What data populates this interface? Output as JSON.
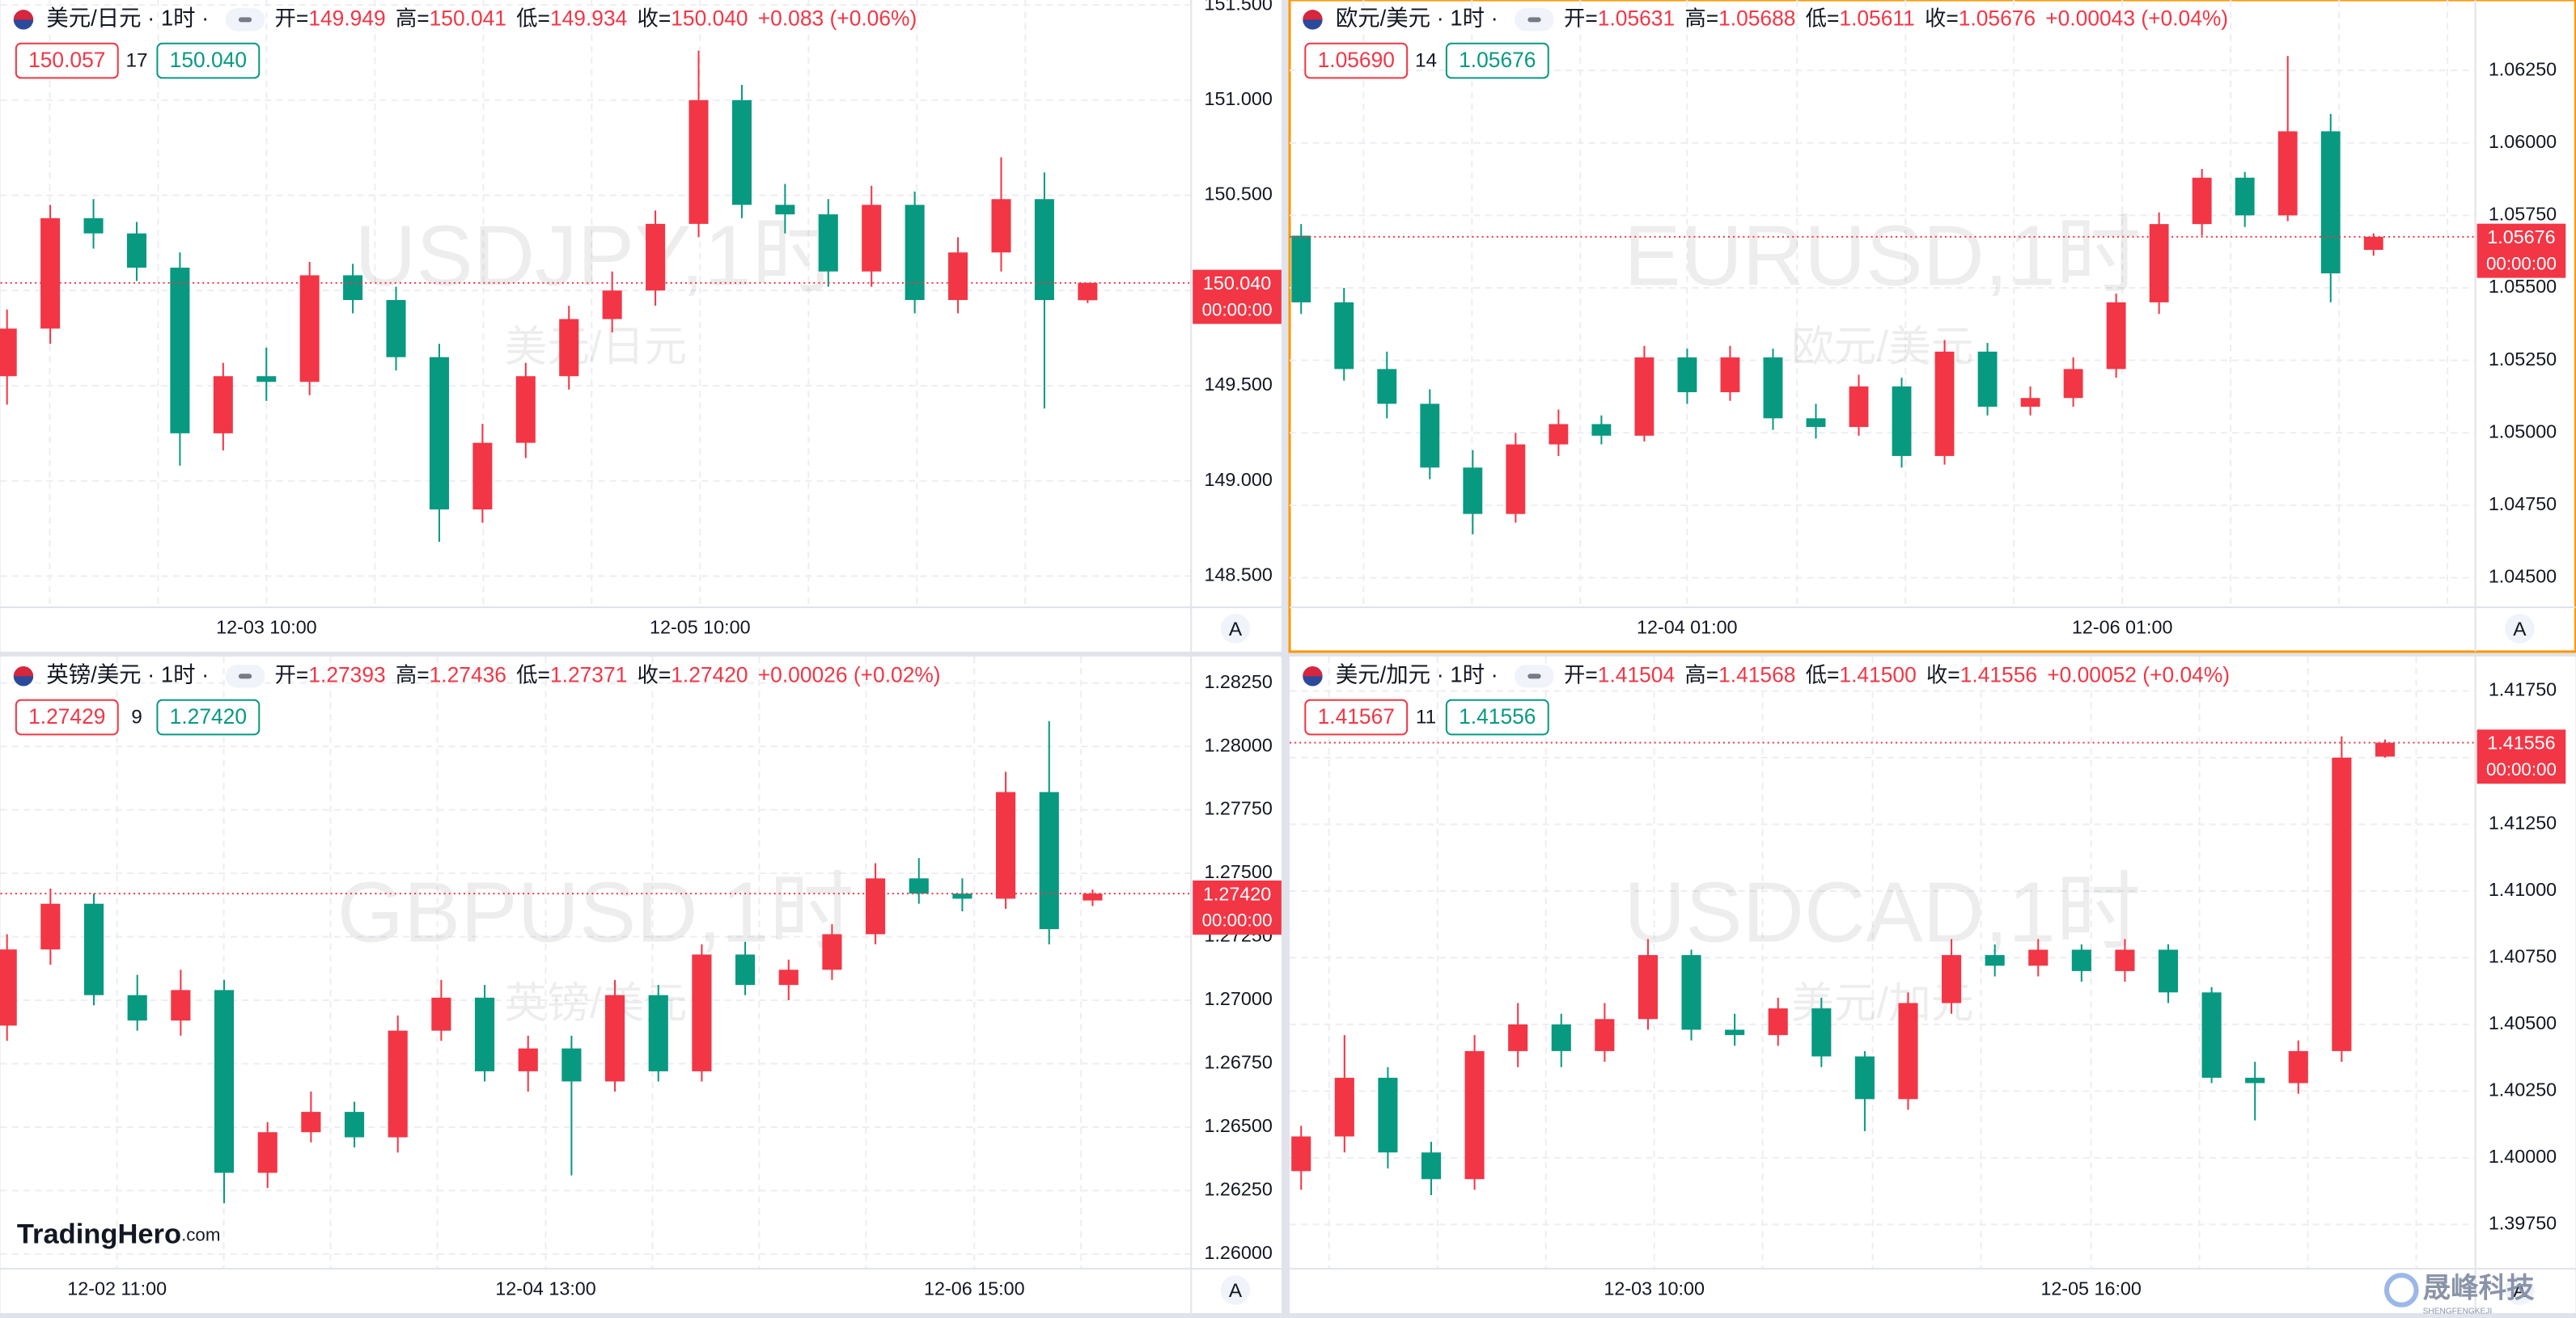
{
  "chart_data": [
    {
      "type": "candlestick",
      "header": {
        "symbol": "美元/日元 · 1时 ·",
        "fields": [
          {
            "label": "开=",
            "value": "149.949"
          },
          {
            "label": "高=",
            "value": "150.041"
          },
          {
            "label": "低=",
            "value": "149.934"
          },
          {
            "label": "收=",
            "value": "150.040"
          }
        ],
        "change": "+0.083 (+0.06%)"
      },
      "bid": "150.057",
      "spread": "17",
      "ask": "150.040",
      "watermark": "USDJPY,1时",
      "watermark_sub": "美元/日元",
      "x_labels": [
        "12-03 10:00",
        "12-05 10:00"
      ],
      "last_label": "150.040",
      "countdown": "00:00:00",
      "auto": "A",
      "up_color": "#f23645",
      "down_color": "#089981",
      "active": false,
      "ylim": [
        148.336,
        151.526
      ],
      "yticks": [
        {
          "value": 148.5,
          "label": "148.500"
        },
        {
          "value": 149,
          "label": "149.000"
        },
        {
          "value": 149.5,
          "label": "149.500"
        },
        {
          "value": 150,
          "label": "150.000"
        },
        {
          "value": 150.5,
          "label": "150.500"
        },
        {
          "value": 151,
          "label": "151.000"
        },
        {
          "value": 151.5,
          "label": "151.500"
        }
      ],
      "open": [
        149.55,
        149.8,
        150.38,
        150.3,
        150.12,
        149.25,
        149.55,
        149.52,
        150.08,
        149.95,
        149.65,
        148.85,
        149.2,
        149.55,
        149.85,
        150.0,
        150.35,
        151.0,
        150.45,
        150.4,
        150.1,
        150.45,
        149.95,
        150.2,
        150.48,
        149.949
      ],
      "high": [
        149.9,
        150.45,
        150.48,
        150.36,
        150.2,
        149.62,
        149.7,
        150.15,
        150.14,
        150.02,
        149.72,
        149.3,
        149.62,
        149.92,
        150.1,
        150.42,
        151.26,
        151.08,
        150.56,
        150.48,
        150.55,
        150.52,
        150.28,
        150.7,
        150.62,
        150.041
      ],
      "low": [
        149.4,
        149.72,
        150.22,
        150.05,
        149.08,
        149.16,
        149.42,
        149.45,
        149.88,
        149.58,
        148.68,
        148.78,
        149.12,
        149.48,
        149.78,
        149.92,
        150.28,
        150.38,
        150.3,
        150.02,
        150.02,
        149.88,
        149.88,
        150.1,
        149.38,
        149.934
      ],
      "close": [
        149.8,
        150.38,
        150.3,
        150.12,
        149.25,
        149.55,
        149.52,
        150.08,
        149.95,
        149.65,
        148.85,
        149.2,
        149.55,
        149.85,
        150.0,
        150.35,
        151.0,
        150.45,
        150.4,
        150.1,
        150.45,
        149.95,
        150.2,
        150.48,
        149.95,
        150.04
      ]
    },
    {
      "type": "candlestick",
      "header": {
        "symbol": "欧元/美元 · 1时 ·",
        "fields": [
          {
            "label": "开=",
            "value": "1.05631"
          },
          {
            "label": "高=",
            "value": "1.05688"
          },
          {
            "label": "低=",
            "value": "1.05611"
          },
          {
            "label": "收=",
            "value": "1.05676"
          }
        ],
        "change": "+0.00043 (+0.04%)"
      },
      "bid": "1.05690",
      "spread": "14",
      "ask": "1.05676",
      "watermark": "EURUSD,1时",
      "watermark_sub": "欧元/美元",
      "x_labels": [
        "12-04 01:00",
        "12-06 01:00"
      ],
      "last_label": "1.05676",
      "countdown": "00:00:00",
      "auto": "A",
      "up_color": "#f23645",
      "down_color": "#089981",
      "active": true,
      "ylim": [
        1.04398,
        1.06493
      ],
      "yticks": [
        {
          "value": 1.045,
          "label": "1.04500"
        },
        {
          "value": 1.0475,
          "label": "1.04750"
        },
        {
          "value": 1.05,
          "label": "1.05000"
        },
        {
          "value": 1.0525,
          "label": "1.05250"
        },
        {
          "value": 1.055,
          "label": "1.05500"
        },
        {
          "value": 1.0575,
          "label": "1.05750"
        },
        {
          "value": 1.06,
          "label": "1.06000"
        },
        {
          "value": 1.0625,
          "label": "1.06250"
        }
      ],
      "open": [
        1.0568,
        1.0545,
        1.0522,
        1.051,
        1.0488,
        1.0472,
        1.0496,
        1.0503,
        1.0499,
        1.0526,
        1.0514,
        1.0526,
        1.0505,
        1.0502,
        1.0516,
        1.0492,
        1.0528,
        1.0509,
        1.0512,
        1.0522,
        1.0545,
        1.0572,
        1.0588,
        1.0575,
        1.0604,
        1.05631
      ],
      "high": [
        1.0572,
        1.055,
        1.0528,
        1.0515,
        1.0494,
        1.05,
        1.0508,
        1.0506,
        1.053,
        1.0529,
        1.053,
        1.0529,
        1.051,
        1.052,
        1.0519,
        1.0532,
        1.0531,
        1.0516,
        1.0526,
        1.0548,
        1.0576,
        1.0591,
        1.059,
        1.063,
        1.061,
        1.05688
      ],
      "low": [
        1.0541,
        1.0518,
        1.0505,
        1.0484,
        1.0465,
        1.0469,
        1.0492,
        1.0496,
        1.0497,
        1.051,
        1.0511,
        1.0501,
        1.0498,
        1.0499,
        1.0488,
        1.0489,
        1.0506,
        1.0506,
        1.0509,
        1.0519,
        1.0541,
        1.0568,
        1.0571,
        1.0573,
        1.0545,
        1.05611
      ],
      "close": [
        1.0545,
        1.0522,
        1.051,
        1.0488,
        1.0472,
        1.0496,
        1.0503,
        1.0499,
        1.0526,
        1.0514,
        1.0526,
        1.0505,
        1.0502,
        1.0516,
        1.0492,
        1.0528,
        1.0509,
        1.0512,
        1.0522,
        1.0545,
        1.0572,
        1.0588,
        1.0575,
        1.0604,
        1.0555,
        1.05676
      ]
    },
    {
      "type": "candlestick",
      "header": {
        "symbol": "英镑/美元 · 1时 ·",
        "fields": [
          {
            "label": "开=",
            "value": "1.27393"
          },
          {
            "label": "高=",
            "value": "1.27436"
          },
          {
            "label": "低=",
            "value": "1.27371"
          },
          {
            "label": "收=",
            "value": "1.27420"
          }
        ],
        "change": "+0.00026 (+0.02%)"
      },
      "bid": "1.27429",
      "spread": "9",
      "ask": "1.27420",
      "watermark": "GBPUSD,1时",
      "watermark_sub": "英镑/美元",
      "x_labels": [
        "12-02 11:00",
        "12-04 13:00",
        "12-06 15:00"
      ],
      "last_label": "1.27420",
      "countdown": "00:00:00",
      "auto": "A",
      "up_color": "#f23645",
      "down_color": "#089981",
      "active": false,
      "ylim": [
        1.25942,
        1.28354
      ],
      "yticks": [
        {
          "value": 1.26,
          "label": "1.26000"
        },
        {
          "value": 1.2625,
          "label": "1.26250"
        },
        {
          "value": 1.265,
          "label": "1.26500"
        },
        {
          "value": 1.2675,
          "label": "1.26750"
        },
        {
          "value": 1.27,
          "label": "1.27000"
        },
        {
          "value": 1.2725,
          "label": "1.27250"
        },
        {
          "value": 1.275,
          "label": "1.27500"
        },
        {
          "value": 1.2775,
          "label": "1.27750"
        },
        {
          "value": 1.28,
          "label": "1.28000"
        },
        {
          "value": 1.2825,
          "label": "1.28250"
        }
      ],
      "open": [
        1.269,
        1.272,
        1.2738,
        1.2702,
        1.2692,
        1.2704,
        1.2632,
        1.2648,
        1.2656,
        1.2646,
        1.2688,
        1.2701,
        1.2672,
        1.2681,
        1.2668,
        1.2702,
        1.2672,
        1.2718,
        1.2706,
        1.2712,
        1.2726,
        1.2748,
        1.2742,
        1.274,
        1.2782,
        1.27393
      ],
      "high": [
        1.2726,
        1.2744,
        1.2742,
        1.271,
        1.2712,
        1.2708,
        1.2652,
        1.2664,
        1.266,
        1.2694,
        1.2708,
        1.2706,
        1.2686,
        1.2686,
        1.2708,
        1.2706,
        1.2722,
        1.2723,
        1.2716,
        1.273,
        1.2754,
        1.2756,
        1.2748,
        1.279,
        1.281,
        1.27436
      ],
      "low": [
        1.2684,
        1.2714,
        1.2698,
        1.2688,
        1.2686,
        1.262,
        1.2626,
        1.2644,
        1.2642,
        1.264,
        1.2684,
        1.2668,
        1.2664,
        1.2631,
        1.2664,
        1.2668,
        1.2668,
        1.2702,
        1.27,
        1.2708,
        1.2722,
        1.2738,
        1.2735,
        1.2736,
        1.2722,
        1.27371
      ],
      "close": [
        1.272,
        1.2738,
        1.2702,
        1.2692,
        1.2704,
        1.2632,
        1.2648,
        1.2656,
        1.2646,
        1.2688,
        1.2701,
        1.2672,
        1.2681,
        1.2668,
        1.2702,
        1.2672,
        1.2718,
        1.2706,
        1.2712,
        1.2726,
        1.2748,
        1.2742,
        1.274,
        1.2782,
        1.2728,
        1.2742
      ]
    },
    {
      "type": "candlestick",
      "header": {
        "symbol": "美元/加元 · 1时 ·",
        "fields": [
          {
            "label": "开=",
            "value": "1.41504"
          },
          {
            "label": "高=",
            "value": "1.41568"
          },
          {
            "label": "低=",
            "value": "1.41500"
          },
          {
            "label": "收=",
            "value": "1.41556"
          }
        ],
        "change": "+0.00052 (+0.04%)"
      },
      "bid": "1.41567",
      "spread": "11",
      "ask": "1.41556",
      "watermark": "USDCAD,1时",
      "watermark_sub": "美元/加元",
      "x_labels": [
        "12-03 10:00",
        "12-05 16:00"
      ],
      "last_label": "1.41556",
      "countdown": "00:00:00",
      "auto": "A",
      "up_color": "#f23645",
      "down_color": "#089981",
      "active": false,
      "ylim": [
        1.39584,
        1.41879
      ],
      "yticks": [
        {
          "value": 1.3975,
          "label": "1.39750"
        },
        {
          "value": 1.4,
          "label": "1.40000"
        },
        {
          "value": 1.4025,
          "label": "1.40250"
        },
        {
          "value": 1.405,
          "label": "1.40500"
        },
        {
          "value": 1.4075,
          "label": "1.40750"
        },
        {
          "value": 1.41,
          "label": "1.41000"
        },
        {
          "value": 1.4125,
          "label": "1.41250"
        },
        {
          "value": 1.415,
          "label": "1.41500"
        },
        {
          "value": 1.4175,
          "label": "1.41750"
        }
      ],
      "open": [
        1.3995,
        1.4008,
        1.403,
        1.4002,
        1.3992,
        1.404,
        1.405,
        1.404,
        1.4052,
        1.4076,
        1.4048,
        1.4046,
        1.4056,
        1.4038,
        1.4022,
        1.4058,
        1.4076,
        1.4072,
        1.4078,
        1.407,
        1.4078,
        1.4062,
        1.403,
        1.4028,
        1.404,
        1.41504
      ],
      "high": [
        1.4012,
        1.4046,
        1.4034,
        1.4006,
        1.4046,
        1.4058,
        1.4054,
        1.4058,
        1.4082,
        1.4078,
        1.4054,
        1.406,
        1.406,
        1.404,
        1.4062,
        1.4082,
        1.408,
        1.4082,
        1.408,
        1.4082,
        1.408,
        1.4064,
        1.4036,
        1.4044,
        1.4158,
        1.41568
      ],
      "low": [
        1.3988,
        1.4002,
        1.3996,
        1.3986,
        1.3988,
        1.4034,
        1.4034,
        1.4036,
        1.4048,
        1.4044,
        1.4042,
        1.4042,
        1.4034,
        1.401,
        1.4018,
        1.4054,
        1.4068,
        1.4068,
        1.4066,
        1.4066,
        1.4058,
        1.4028,
        1.4014,
        1.4024,
        1.4036,
        1.415
      ],
      "close": [
        1.4008,
        1.403,
        1.4002,
        1.3992,
        1.404,
        1.405,
        1.404,
        1.4052,
        1.4076,
        1.4048,
        1.4046,
        1.4056,
        1.4038,
        1.4022,
        1.4058,
        1.4076,
        1.4072,
        1.4078,
        1.407,
        1.4078,
        1.4062,
        1.403,
        1.4028,
        1.404,
        1.415,
        1.41556
      ]
    }
  ],
  "branding": {
    "logo": "TradingHero",
    "logo_suffix": ".com",
    "watermark": "晟峰科技",
    "watermark_sub": "SHENGFENGKEJI"
  }
}
